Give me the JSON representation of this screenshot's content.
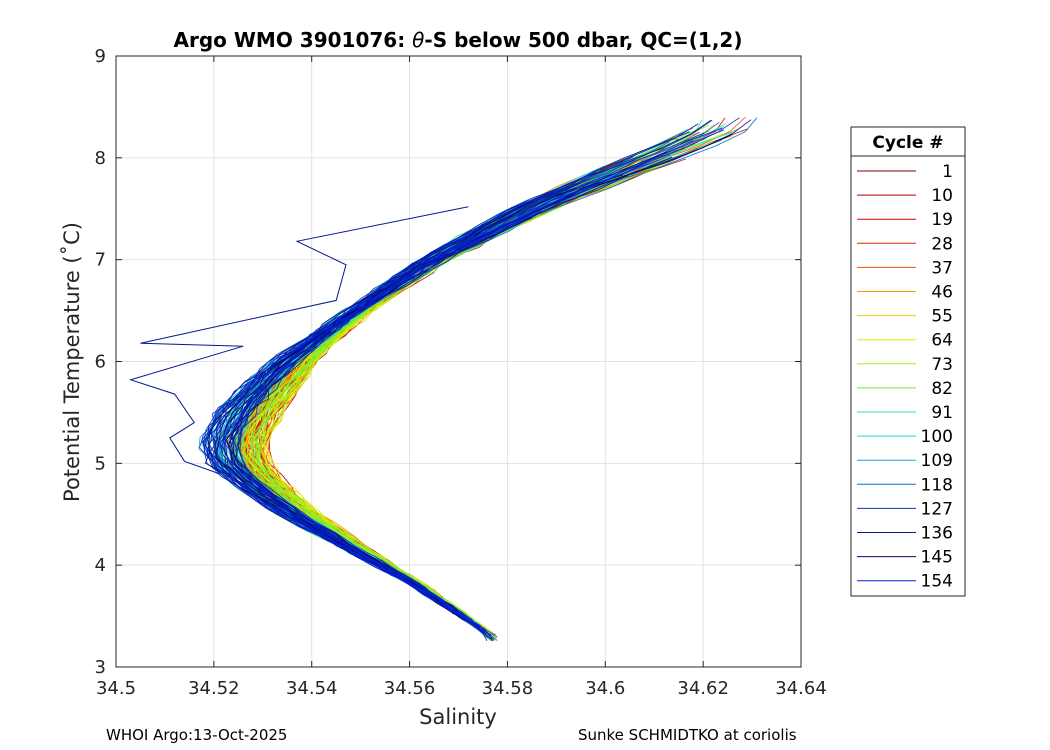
{
  "chart_data": {
    "type": "line",
    "title_prefix": "Argo WMO 3901076: ",
    "title_symbol": "θ",
    "title_suffix": "-S below 500 dbar,  QC=(1,2)",
    "xlabel": "Salinity",
    "ylabel": "Potential Temperature (˚C)",
    "xlim": [
      34.5,
      34.64
    ],
    "ylim": [
      3,
      9
    ],
    "xticks": [
      34.5,
      34.52,
      34.54,
      34.56,
      34.58,
      34.6,
      34.62,
      34.64
    ],
    "xtick_labels": [
      "34.5",
      "34.52",
      "34.54",
      "34.56",
      "34.58",
      "34.6",
      "34.62",
      "34.64"
    ],
    "yticks": [
      3,
      4,
      5,
      6,
      7,
      8,
      9
    ],
    "ytick_labels": [
      "3",
      "4",
      "5",
      "6",
      "7",
      "8",
      "9"
    ],
    "grid": true,
    "legend_title": "Cycle #",
    "legend_position": "outside-right",
    "series": [
      {
        "name": "1",
        "color": "#800000"
      },
      {
        "name": "10",
        "color": "#aa0000"
      },
      {
        "name": "19",
        "color": "#d40000"
      },
      {
        "name": "28",
        "color": "#e82000"
      },
      {
        "name": "37",
        "color": "#f25500"
      },
      {
        "name": "46",
        "color": "#f59a00"
      },
      {
        "name": "55",
        "color": "#f2d000"
      },
      {
        "name": "64",
        "color": "#d8f000"
      },
      {
        "name": "73",
        "color": "#a6f21a"
      },
      {
        "name": "82",
        "color": "#66ee3a"
      },
      {
        "name": "91",
        "color": "#33e88e"
      },
      {
        "name": "100",
        "color": "#1ad8d0"
      },
      {
        "name": "109",
        "color": "#10a8e0"
      },
      {
        "name": "118",
        "color": "#0a70c8"
      },
      {
        "name": "127",
        "color": "#0838b0"
      },
      {
        "name": "136",
        "color": "#061890"
      },
      {
        "name": "145",
        "color": "#040a70"
      },
      {
        "name": "154",
        "color": "#0820d8"
      }
    ],
    "profile_centerline": {
      "theta": [
        8.3,
        8.0,
        7.5,
        7.0,
        6.5,
        6.0,
        5.5,
        5.2,
        5.0,
        4.8,
        4.5,
        4.2,
        4.0,
        3.8,
        3.6,
        3.4,
        3.3
      ],
      "salinity": [
        34.625,
        34.61,
        34.585,
        34.565,
        34.55,
        34.537,
        34.528,
        34.525,
        34.526,
        34.53,
        34.538,
        34.548,
        34.555,
        34.562,
        34.568,
        34.574,
        34.577
      ]
    },
    "anomaly_profile": {
      "theta": [
        7.52,
        7.18,
        6.95,
        6.6,
        6.18,
        6.15,
        5.82,
        5.68,
        5.4,
        5.25,
        5.02,
        4.9
      ],
      "salinity": [
        34.572,
        34.537,
        34.547,
        34.545,
        34.505,
        34.526,
        34.503,
        34.512,
        34.516,
        34.511,
        34.514,
        34.521
      ]
    }
  },
  "footer": {
    "left": "WHOI Argo:13-Oct-2025",
    "right": "Sunke SCHMIDTKO at coriolis"
  }
}
